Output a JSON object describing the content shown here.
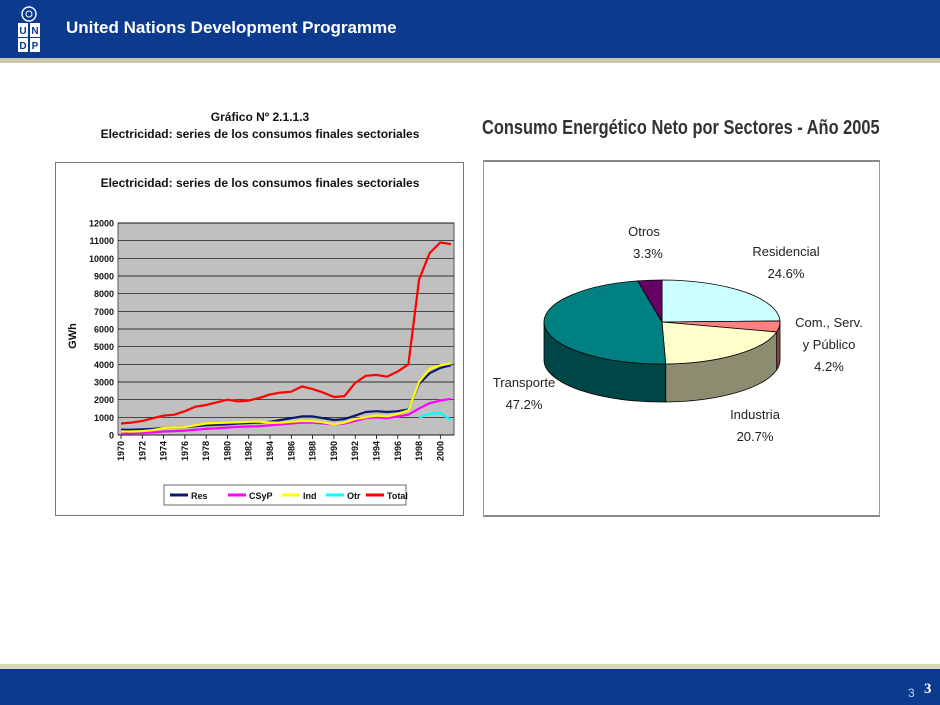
{
  "header": {
    "org_title": "United Nations Development Programme",
    "logo_letters": [
      "U",
      "N",
      "D",
      "P"
    ]
  },
  "line_chart": {
    "figure_number": "Gráfico Nº 2.1.1.3",
    "figure_caption": "Electricidad: series de los consumos finales sectoriales"
  },
  "pie_chart": {
    "heading": "Consumo Energético Neto por Sectores - Año 2005"
  },
  "footer": {
    "page_small": "3",
    "page_big": "3"
  },
  "colors": {
    "Res": "#0c1a6b",
    "CSyP": "#ff00ff",
    "Ind": "#ffff00",
    "Otr": "#00ffff",
    "Total": "#ff0000",
    "plot_bg": "#c0c0c0",
    "header": "#0b3a8f"
  },
  "chart_data": [
    {
      "type": "line",
      "title": "Electricidad: series de los consumos finales sectoriales",
      "xlabel": "",
      "ylabel": "GWh",
      "x": [
        1970,
        1971,
        1972,
        1973,
        1974,
        1975,
        1976,
        1977,
        1978,
        1979,
        1980,
        1981,
        1982,
        1983,
        1984,
        1985,
        1986,
        1987,
        1988,
        1989,
        1990,
        1991,
        1992,
        1993,
        1994,
        1995,
        1996,
        1997,
        1998,
        1999,
        2000,
        2001
      ],
      "x_ticks": [
        "1970",
        "1972",
        "1974",
        "1976",
        "1978",
        "1980",
        "1982",
        "1984",
        "1986",
        "1988",
        "1990",
        "1992",
        "1994",
        "1996",
        "1998",
        "2000"
      ],
      "ylim": [
        0,
        12000
      ],
      "y_ticks": [
        "0",
        "1000",
        "2000",
        "3000",
        "4000",
        "5000",
        "6000",
        "7000",
        "8000",
        "9000",
        "10000",
        "11000",
        "12000"
      ],
      "grid": true,
      "legend_position": "bottom",
      "series": [
        {
          "name": "Res",
          "values": [
            300,
            300,
            320,
            350,
            400,
            420,
            450,
            500,
            550,
            580,
            600,
            650,
            680,
            700,
            750,
            850,
            950,
            1050,
            1050,
            950,
            850,
            900,
            1100,
            1300,
            1350,
            1300,
            1350,
            1450,
            2900,
            3500,
            3800,
            3950
          ]
        },
        {
          "name": "CSyP",
          "values": [
            100,
            100,
            120,
            150,
            200,
            220,
            250,
            300,
            350,
            380,
            420,
            460,
            480,
            500,
            550,
            600,
            650,
            700,
            700,
            650,
            600,
            650,
            800,
            950,
            1000,
            950,
            1050,
            1150,
            1500,
            1800,
            1950,
            2050
          ]
        },
        {
          "name": "Ind",
          "values": [
            200,
            200,
            220,
            280,
            400,
            420,
            450,
            550,
            650,
            680,
            700,
            720,
            750,
            760,
            700,
            700,
            750,
            800,
            780,
            720,
            600,
            700,
            900,
            1000,
            1100,
            1050,
            1200,
            1400,
            3000,
            3750,
            3950,
            4050
          ]
        },
        {
          "name": "Otr",
          "values": [
            null,
            null,
            null,
            null,
            null,
            null,
            null,
            null,
            null,
            null,
            null,
            null,
            null,
            null,
            null,
            null,
            null,
            null,
            null,
            null,
            null,
            null,
            null,
            null,
            null,
            null,
            null,
            null,
            1000,
            1200,
            1250,
            850
          ]
        },
        {
          "name": "Total",
          "values": [
            650,
            700,
            800,
            950,
            1100,
            1150,
            1350,
            1600,
            1700,
            1850,
            2000,
            1900,
            1950,
            2100,
            2300,
            2400,
            2450,
            2750,
            2600,
            2400,
            2150,
            2200,
            2950,
            3350,
            3400,
            3300,
            3600,
            4000,
            8800,
            10300,
            10900,
            10800
          ]
        }
      ]
    },
    {
      "type": "pie",
      "title": "Consumo Energético Neto por Sectores - Año 2005",
      "slices": [
        {
          "label": "Residencial",
          "value": 24.6,
          "value_label": "24.6%",
          "color": "#ccffff"
        },
        {
          "label": "Com., Serv.",
          "label2": "y Público",
          "value": 4.2,
          "value_label": "4.2%",
          "color": "#ff8080"
        },
        {
          "label": "Industria",
          "value": 20.7,
          "value_label": "20.7%",
          "color": "#ffffcc"
        },
        {
          "label": "Transporte",
          "value": 47.2,
          "value_label": "47.2%",
          "color": "#008080"
        },
        {
          "label": "Otros",
          "value": 3.3,
          "value_label": "3.3%",
          "color": "#660066"
        }
      ]
    }
  ]
}
